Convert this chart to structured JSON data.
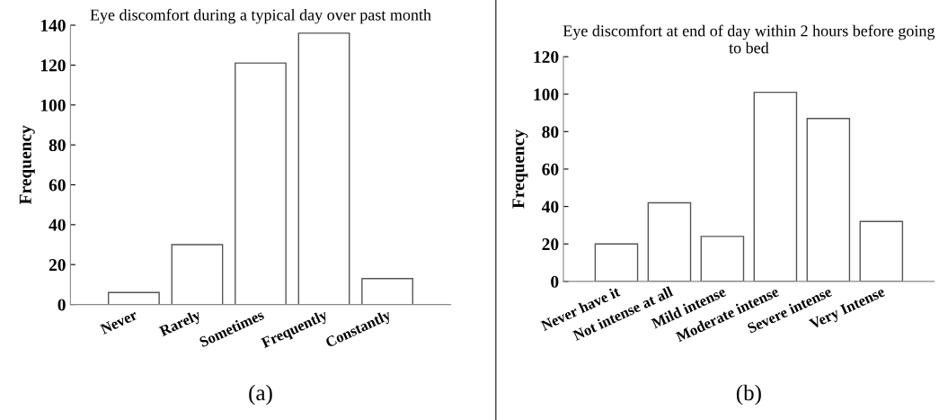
{
  "chart_data": [
    {
      "type": "bar",
      "title": "Eye discomfort during a typical day over past month",
      "ylabel": "Frequency",
      "categories": [
        "Never",
        "Rarely",
        "Sometimes",
        "Frequently",
        "Constantly"
      ],
      "values": [
        6,
        30,
        121,
        136,
        13
      ],
      "color": "#ffffff",
      "ylim": [
        0,
        140
      ],
      "yticks": [
        0,
        20,
        40,
        60,
        80,
        100,
        120,
        140
      ],
      "grid": false,
      "annotations": [
        "(a)"
      ]
    },
    {
      "type": "bar",
      "title": "Eye discomfort at end of day within 2 hours before going to bed",
      "ylabel": "Frequency",
      "categories": [
        "Never have it",
        "Not intense at all",
        "Mild intense",
        "Moderate intense",
        "Severe intense",
        "Very Intense"
      ],
      "values": [
        20,
        42,
        24,
        101,
        87,
        32
      ],
      "color": "#ffffff",
      "ylim": [
        0,
        120
      ],
      "yticks": [
        0,
        20,
        40,
        60,
        80,
        100,
        120
      ],
      "grid": false,
      "annotations": [
        "(b)"
      ]
    }
  ]
}
